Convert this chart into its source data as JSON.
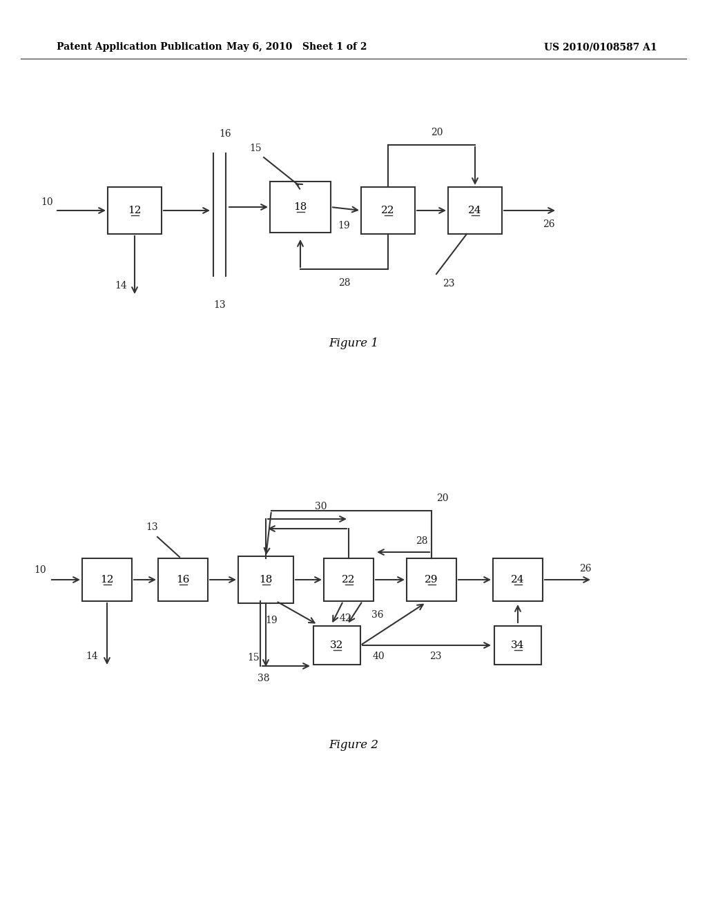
{
  "bg_color": "#ffffff",
  "header_left": "Patent Application Publication",
  "header_mid": "May 6, 2010   Sheet 1 of 2",
  "header_right": "US 2010/0108587 A1"
}
